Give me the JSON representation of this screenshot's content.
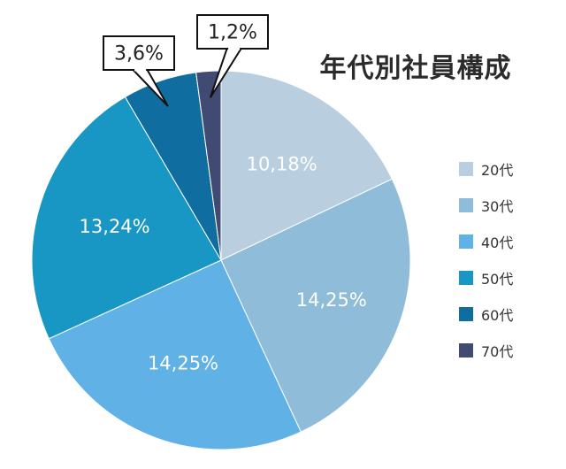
{
  "colors": {
    "background": "#ffffff",
    "c20": "#b9cfdf",
    "c30": "#8fbcd8",
    "c40": "#5fb1e6",
    "c50": "#1897c4",
    "c60": "#106d9f",
    "c70": "#414a72"
  },
  "chart_data": {
    "type": "pie",
    "title": "年代別社員構成",
    "slices": [
      {
        "legend": "20代",
        "value": 10.18,
        "label": "10,18%"
      },
      {
        "legend": "30代",
        "value": 14.25,
        "label": "14,25%"
      },
      {
        "legend": "40代",
        "value": 14.25,
        "label": "14,25%"
      },
      {
        "legend": "50代",
        "value": 13.24,
        "label": "13,24%"
      },
      {
        "legend": "60代",
        "value": 3.6,
        "label": "3,6%"
      },
      {
        "legend": "70代",
        "value": 1.2,
        "label": "1,2%"
      }
    ],
    "legend_placement": "right"
  }
}
